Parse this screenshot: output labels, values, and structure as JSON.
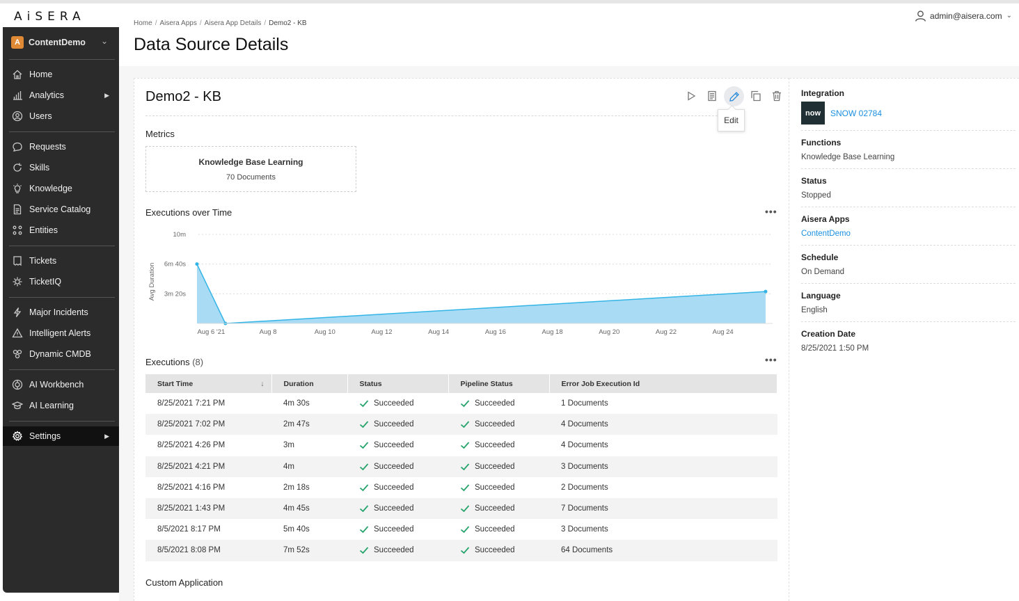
{
  "brand": {
    "logo_text": "AiSERA"
  },
  "tenant": {
    "badge": "A",
    "name": "ContentDemo"
  },
  "sidebar": {
    "items": [
      {
        "label": "Home",
        "icon": "home-icon"
      },
      {
        "label": "Analytics",
        "icon": "bar-chart-icon",
        "has_arrow": true
      },
      {
        "label": "Users",
        "icon": "users-icon"
      },
      {
        "label": "Requests",
        "icon": "chat-bubble-icon"
      },
      {
        "label": "Skills",
        "icon": "refresh-icon"
      },
      {
        "label": "Knowledge",
        "icon": "lightbulb-icon"
      },
      {
        "label": "Service Catalog",
        "icon": "document-icon"
      },
      {
        "label": "Entities",
        "icon": "entities-icon"
      },
      {
        "label": "Tickets",
        "icon": "ticket-icon"
      },
      {
        "label": "TicketIQ",
        "icon": "ticketiq-icon"
      },
      {
        "label": "Major Incidents",
        "icon": "lightning-icon"
      },
      {
        "label": "Intelligent Alerts",
        "icon": "warning-icon"
      },
      {
        "label": "Dynamic CMDB",
        "icon": "cmdb-icon"
      },
      {
        "label": "AI Workbench",
        "icon": "workbench-icon"
      },
      {
        "label": "AI Learning",
        "icon": "graduation-cap-icon"
      },
      {
        "label": "Settings",
        "icon": "gear-icon",
        "has_arrow": true,
        "active": true
      }
    ]
  },
  "header": {
    "breadcrumb": [
      "Home",
      "Aisera Apps",
      "Aisera App Details",
      "Demo2 - KB"
    ],
    "title": "Data Source Details",
    "user_email": "admin@aisera.com"
  },
  "card": {
    "title": "Demo2 - KB",
    "toolbar": [
      "play-icon",
      "document-icon",
      "edit-icon",
      "copy-icon",
      "trash-icon"
    ],
    "tooltip": "Edit",
    "metrics_label": "Metrics",
    "metric": {
      "title": "Knowledge Base Learning",
      "value": "70 Documents"
    },
    "chart_label": "Executions over Time",
    "executions_label": "Executions",
    "executions_count": "(8)",
    "custom_app_label": "Custom Application"
  },
  "chart_data": {
    "type": "area",
    "title": "",
    "ylabel": "Avg Duration",
    "xlabel": "",
    "y_ticks": [
      "3m 20s",
      "6m 40s",
      "10m"
    ],
    "y_tick_seconds": [
      200,
      400,
      600
    ],
    "ylim_seconds": [
      0,
      600
    ],
    "x_ticks": [
      "Aug 6 '21",
      "Aug 8",
      "Aug 10",
      "Aug 12",
      "Aug 14",
      "Aug 16",
      "Aug 18",
      "Aug 20",
      "Aug 22",
      "Aug 24"
    ],
    "x_tick_day": [
      6,
      8,
      10,
      12,
      14,
      16,
      18,
      20,
      22,
      24
    ],
    "xlim_day": [
      5.55,
      25.55
    ],
    "points": [
      {
        "x_day": 5.5,
        "avg_duration_seconds": 400
      },
      {
        "x_day": 6.5,
        "avg_duration_seconds": 0
      },
      {
        "x_day": 25.5,
        "avg_duration_seconds": 215
      }
    ],
    "color": "#a9dcf4",
    "line_color": "#33b4e6",
    "grid": true
  },
  "table": {
    "columns": [
      "Start Time",
      "Duration",
      "Status",
      "Pipeline Status",
      "Error Job Execution Id"
    ],
    "rows": [
      [
        "8/25/2021 7:21 PM",
        "4m 30s",
        "Succeeded",
        "Succeeded",
        "1 Documents"
      ],
      [
        "8/25/2021 7:02 PM",
        "2m 47s",
        "Succeeded",
        "Succeeded",
        "4 Documents"
      ],
      [
        "8/25/2021 4:26 PM",
        "3m",
        "Succeeded",
        "Succeeded",
        "4 Documents"
      ],
      [
        "8/25/2021 4:21 PM",
        "4m",
        "Succeeded",
        "Succeeded",
        "3 Documents"
      ],
      [
        "8/25/2021 4:16 PM",
        "2m 18s",
        "Succeeded",
        "Succeeded",
        "2 Documents"
      ],
      [
        "8/25/2021 1:43 PM",
        "4m 45s",
        "Succeeded",
        "Succeeded",
        "7 Documents"
      ],
      [
        "8/5/2021 8:17 PM",
        "5m 40s",
        "Succeeded",
        "Succeeded",
        "3 Documents"
      ],
      [
        "8/5/2021 8:08 PM",
        "7m 52s",
        "Succeeded",
        "Succeeded",
        "64 Documents"
      ]
    ]
  },
  "details": {
    "integration_label": "Integration",
    "integration_logo": "now",
    "integration_name": "SNOW 02784",
    "functions_label": "Functions",
    "functions_value": "Knowledge Base Learning",
    "status_label": "Status",
    "status_value": "Stopped",
    "apps_label": "Aisera Apps",
    "apps_value": "ContentDemo",
    "schedule_label": "Schedule",
    "schedule_value": "On Demand",
    "language_label": "Language",
    "language_value": "English",
    "creation_label": "Creation Date",
    "creation_value": "8/25/2021 1:50 PM"
  }
}
